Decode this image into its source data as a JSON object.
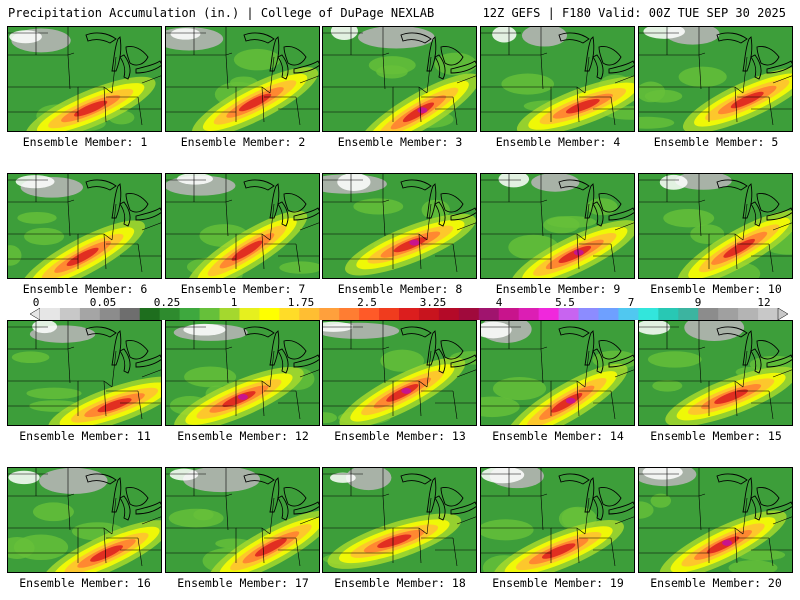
{
  "header": {
    "title": "Precipitation Accumulation (in.) | College of DuPage NEXLAB",
    "run_info": "12Z GEFS | F180 Valid: 00Z TUE SEP 30 2025"
  },
  "colorbar": {
    "labels": [
      "0",
      "0.05",
      "0.25",
      "1",
      "1.75",
      "2.5",
      "3.25",
      "4",
      "5.5",
      "7",
      "9",
      "12"
    ],
    "colors": [
      "#e6e6e6",
      "#c8c8c8",
      "#a5a5a5",
      "#8c8c8c",
      "#6e6e6e",
      "#1e6e1e",
      "#2e8b2e",
      "#3ea83e",
      "#66c03a",
      "#a4d82e",
      "#e6f01e",
      "#ffff00",
      "#ffdc28",
      "#ffbe32",
      "#ffa03c",
      "#ff7d32",
      "#ff5a28",
      "#f03c1e",
      "#dc1e1e",
      "#c8141e",
      "#b40a28",
      "#a00a3c",
      "#a0146e",
      "#c8148c",
      "#dc1eb4",
      "#f028dc",
      "#c864f0",
      "#8c8cff",
      "#6ea0ff",
      "#50c8f0",
      "#32e6dc",
      "#28c8b4",
      "#3cb4a0",
      "#8c8c8c",
      "#a0a0a0",
      "#b4b4b4",
      "#c8c8c8"
    ]
  },
  "panels": [
    {
      "label": "Ensemble Member: 1"
    },
    {
      "label": "Ensemble Member: 2"
    },
    {
      "label": "Ensemble Member: 3"
    },
    {
      "label": "Ensemble Member: 4"
    },
    {
      "label": "Ensemble Member: 5"
    },
    {
      "label": "Ensemble Member: 6"
    },
    {
      "label": "Ensemble Member: 7"
    },
    {
      "label": "Ensemble Member: 8"
    },
    {
      "label": "Ensemble Member: 9"
    },
    {
      "label": "Ensemble Member: 10"
    },
    {
      "label": "Ensemble Member: 11"
    },
    {
      "label": "Ensemble Member: 12"
    },
    {
      "label": "Ensemble Member: 13"
    },
    {
      "label": "Ensemble Member: 14"
    },
    {
      "label": "Ensemble Member: 15"
    },
    {
      "label": "Ensemble Member: 16"
    },
    {
      "label": "Ensemble Member: 17"
    },
    {
      "label": "Ensemble Member: 18"
    },
    {
      "label": "Ensemble Member: 19"
    },
    {
      "label": "Ensemble Member: 20"
    }
  ]
}
